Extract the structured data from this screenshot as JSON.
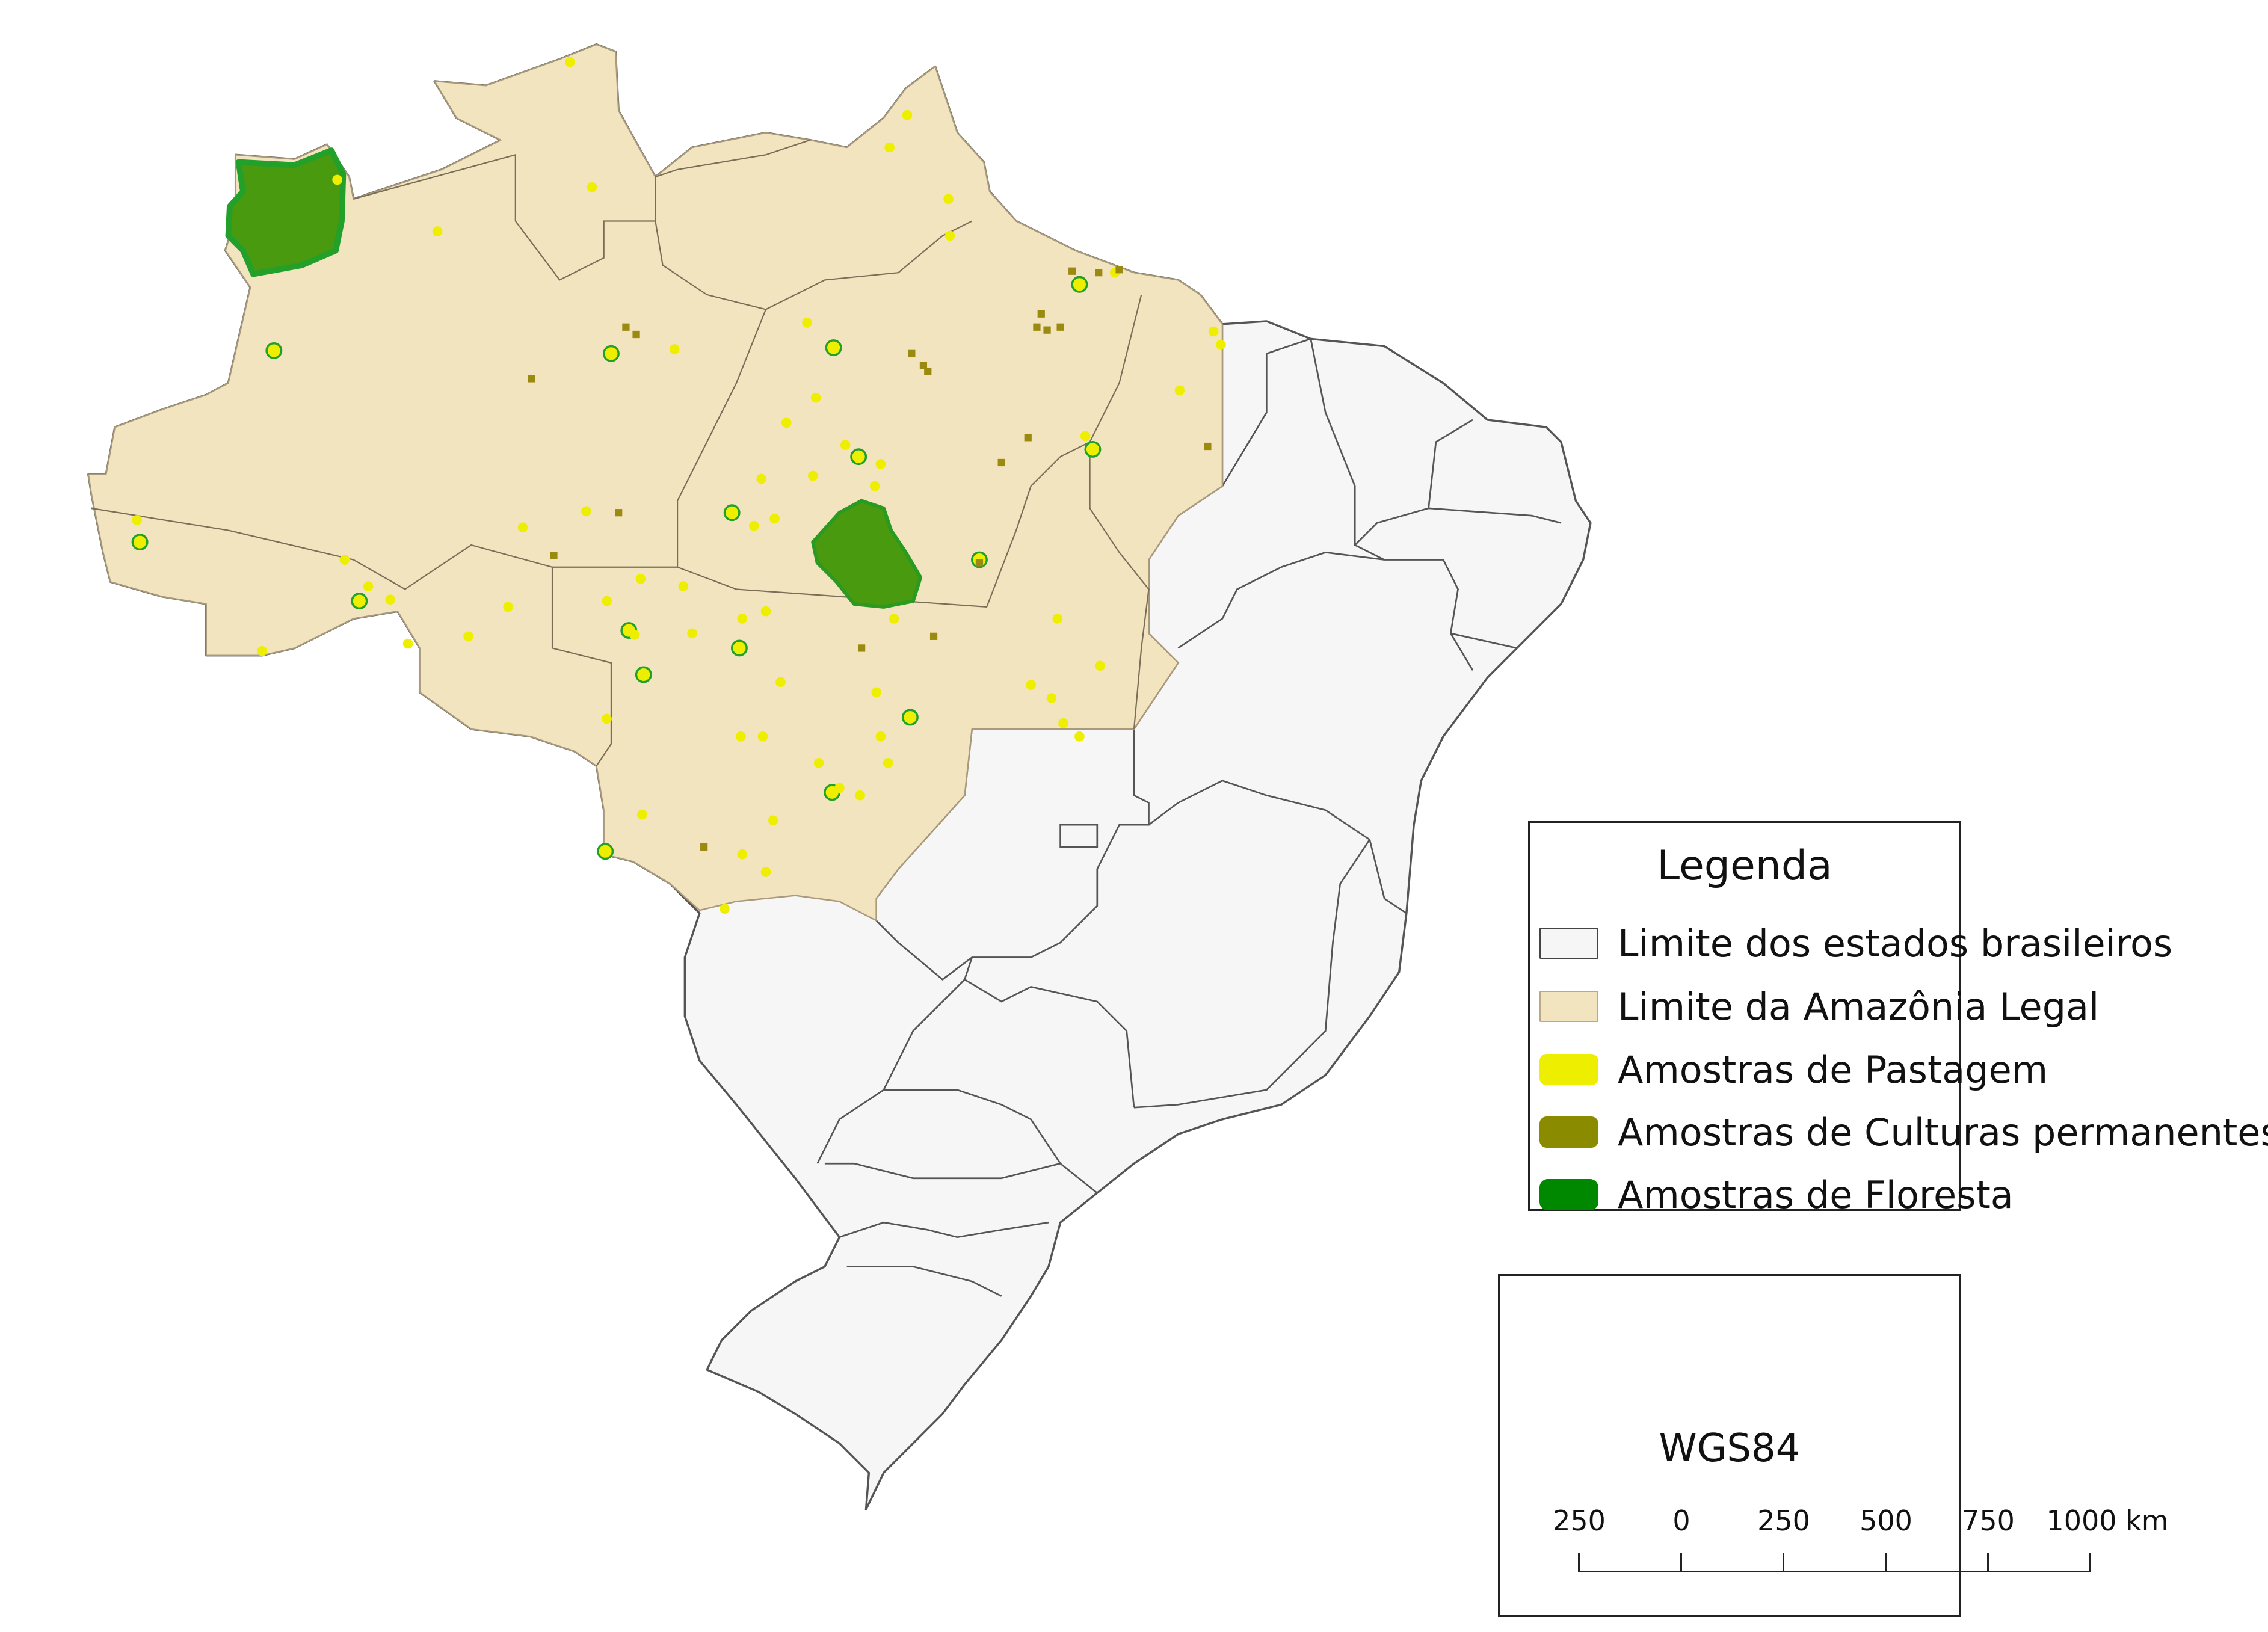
{
  "legend": {
    "title": "Legenda",
    "items": [
      {
        "label": "Limite dos estados brasileiros",
        "fill": "#f6f6f6",
        "stroke": "#444444"
      },
      {
        "label": "Limite da Amazônia Legal",
        "fill": "#f3e4c0",
        "stroke": "#b8a98a"
      },
      {
        "label": "Amostras de Pastagem",
        "fill": "#eeee00",
        "stroke": "#eeee00"
      },
      {
        "label": "Amostras de Culturas permanentes",
        "fill": "#8b8b00",
        "stroke": "#6e6e00"
      },
      {
        "label": "Amostras de Floresta",
        "fill": "#008800",
        "stroke": "#008800"
      }
    ]
  },
  "scalebar": {
    "crs": "WGS84",
    "ticks": [
      "250",
      "0",
      "250",
      "500",
      "750",
      "1000 km"
    ]
  },
  "colors": {
    "brazil_fill": "#f6f6f6",
    "amazonia_fill": "#f3e4c0",
    "boundary": "#555555",
    "pastagem": "#eeee00",
    "culturas": "#9a8a10",
    "floresta": "#4a9a10",
    "floresta_edge": "#22a02a"
  }
}
